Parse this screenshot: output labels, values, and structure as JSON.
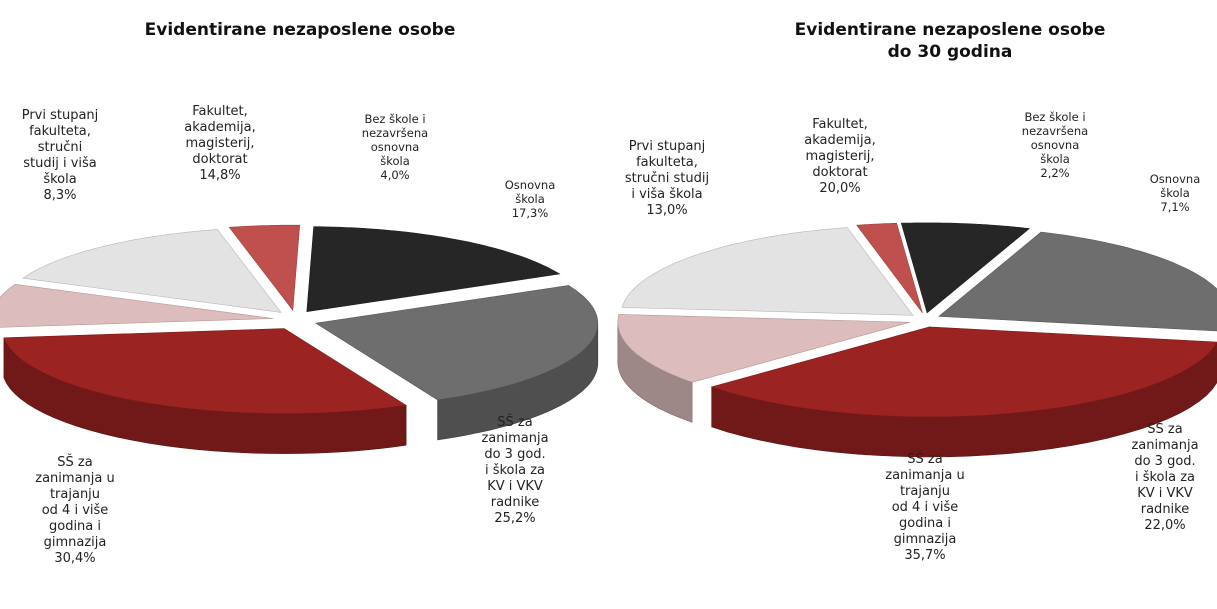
{
  "chart_data": [
    {
      "type": "pie",
      "title": "Evidentirane nezaposlene osobe",
      "series": [
        {
          "values": [
            4.0,
            17.3,
            25.2,
            30.4,
            8.3,
            14.8
          ]
        }
      ],
      "categories": [
        "Bez škole i nezavršena osnovna škola",
        "Osnovna škola",
        "SŠ za zanimanja do 3 god. i škola za KV i VKV radnike",
        "SŠ za zanimanja u trajanju od 4 i više godina i gimnazija",
        "Prvi stupanj fakulteta, stručni studij i viša škola",
        "Fakultet, akademija, magisterij, doktorat"
      ],
      "colors": [
        "#c0504d",
        "#262626",
        "#6e6e6e",
        "#9b2321",
        "#dcbcbc",
        "#e3e3e3"
      ],
      "labels": [
        [
          "Bez škole i",
          "nezavršena",
          "osnovna",
          "škola",
          "4,0%"
        ],
        [
          "Osnovna",
          "škola",
          "17,3%"
        ],
        [
          "SŠ za",
          "zanimanja",
          "do 3 god.",
          "i škola za",
          "KV i VKV",
          "radnike",
          "25,2%"
        ],
        [
          "SŠ za",
          "zanimanja u",
          "trajanju",
          "od 4 i više",
          "godina i",
          "gimnazija",
          "30,4%"
        ],
        [
          "Prvi stupanj",
          "fakulteta,",
          "stručni",
          "studij i viša",
          "škola",
          "8,3%"
        ],
        [
          "Fakultet,",
          "akademija,",
          "magisterij,",
          "doktorat",
          "14,8%"
        ]
      ]
    },
    {
      "type": "pie",
      "title": "Evidentirane nezaposlene osobe do 30 godina",
      "title_lines": [
        "Evidentirane nezaposlene osobe",
        "do 30 godina"
      ],
      "series": [
        {
          "values": [
            2.2,
            7.1,
            22.0,
            35.7,
            13.0,
            20.0
          ]
        }
      ],
      "categories": [
        "Bez škole i nezavršena osnovna škola",
        "Osnovna škola",
        "SŠ za zanimanja do 3 god. i škola za KV i VKV radnike",
        "SŠ za zanimanja u trajanju od 4 i više godina i gimnazija",
        "Prvi stupanj fakulteta, stručni studij i viša škola",
        "Fakultet, akademija, magisterij, doktorat"
      ],
      "colors": [
        "#c0504d",
        "#262626",
        "#6e6e6e",
        "#9b2321",
        "#dcbcbc",
        "#e3e3e3"
      ],
      "labels": [
        [
          "Bez škole i",
          "nezavršena",
          "osnovna",
          "škola",
          "2,2%"
        ],
        [
          "Osnovna",
          "škola",
          "7,1%"
        ],
        [
          "SŠ za",
          "zanimanja",
          "do 3 god.",
          "i škola za",
          "KV i VKV",
          "radnike",
          "22,0%"
        ],
        [
          "SŠ za",
          "zanimanja u",
          "trajanju",
          "od 4 i više",
          "godina i",
          "gimnazija",
          "35,7%"
        ],
        [
          "Prvi stupanj",
          "fakulteta,",
          "stručni studij",
          "i viša škola",
          "13,0%"
        ],
        [
          "Fakultet,",
          "akademija,",
          "magisterij,",
          "doktorat",
          "20,0%"
        ]
      ]
    }
  ]
}
